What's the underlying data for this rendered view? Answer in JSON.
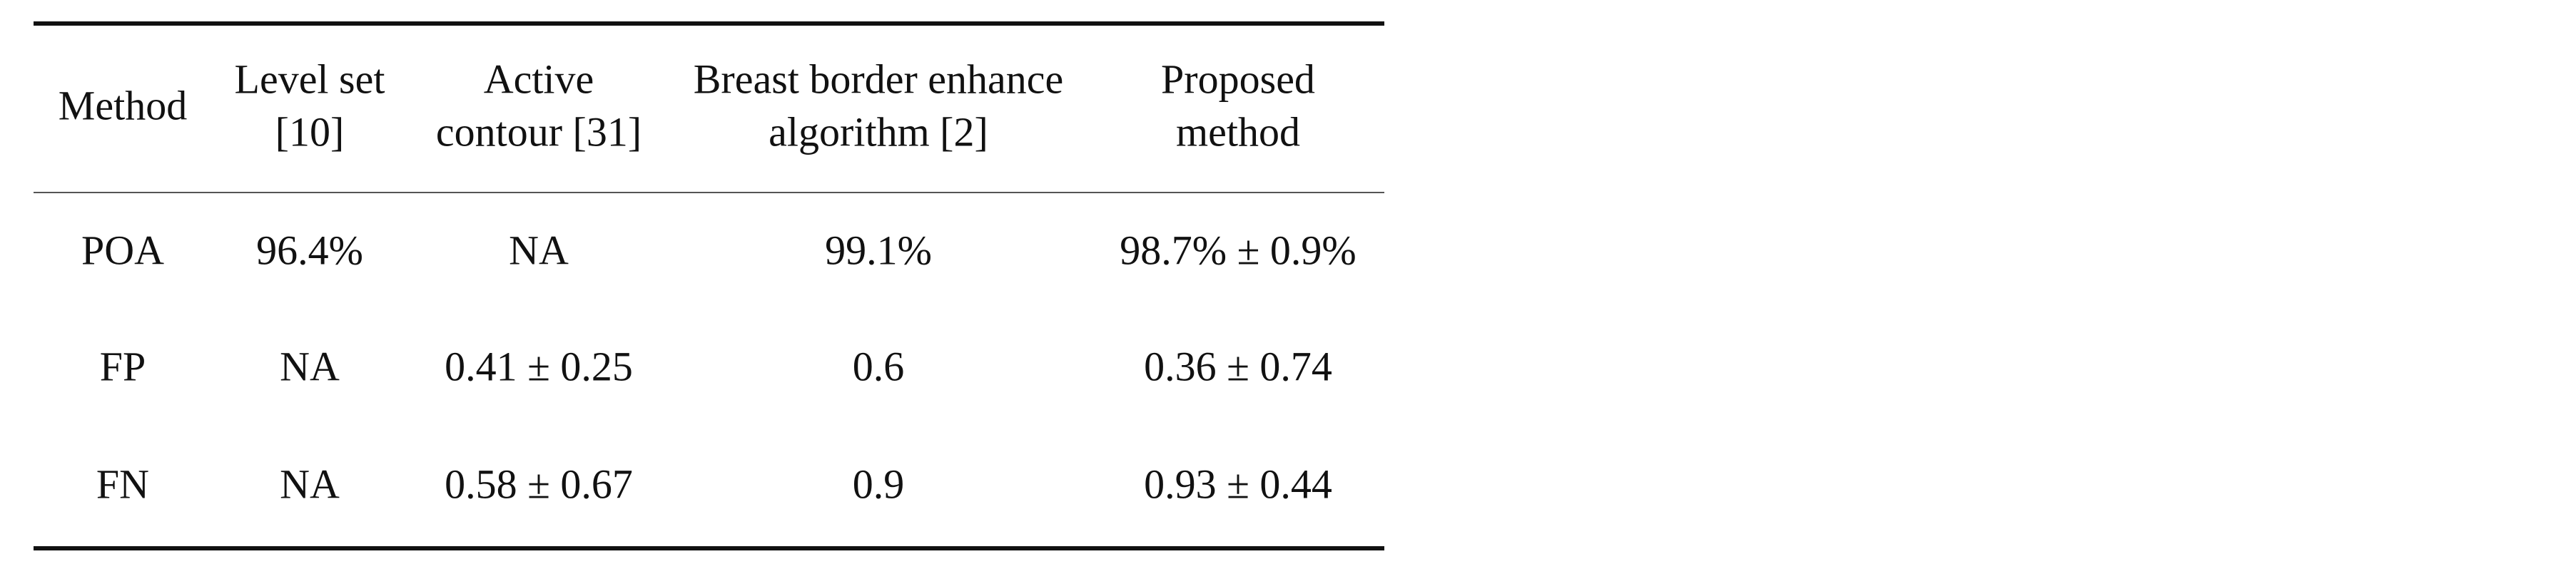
{
  "table": {
    "header": [
      [
        "Method"
      ],
      [
        "Level set",
        "[10]"
      ],
      [
        "Active",
        "contour [31]"
      ],
      [
        "Breast border enhance",
        "algorithm [2]"
      ],
      [
        "Proposed",
        "method"
      ]
    ],
    "rows": [
      [
        "POA",
        "96.4%",
        "NA",
        "99.1%",
        "98.7% ± 0.9%"
      ],
      [
        "FP",
        "NA",
        "0.41 ± 0.25",
        "0.6",
        "0.36 ± 0.74"
      ],
      [
        "FN",
        "NA",
        "0.58 ± 0.67",
        "0.9",
        "0.93 ± 0.44"
      ]
    ]
  }
}
